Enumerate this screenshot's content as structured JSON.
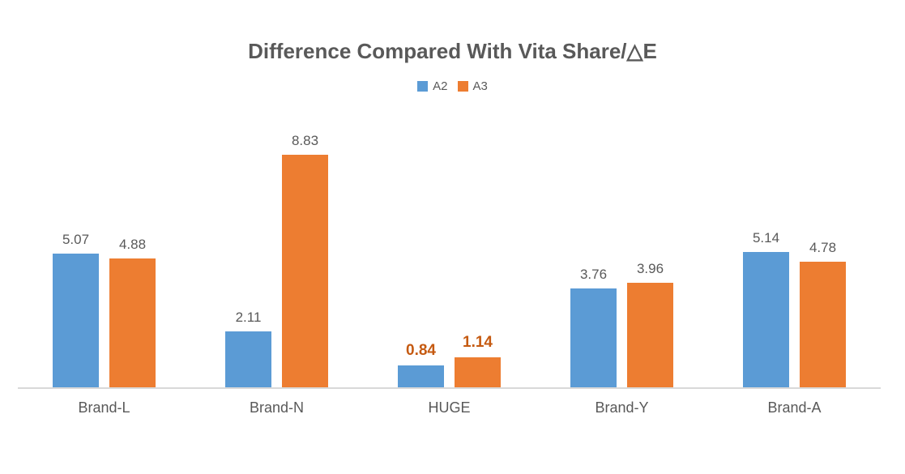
{
  "chart_data": {
    "type": "bar",
    "title": "Difference Compared With Vita Share/△E",
    "categories": [
      "Brand-L",
      "Brand-N",
      "HUGE",
      "Brand-Y",
      "Brand-A"
    ],
    "series": [
      {
        "name": "A2",
        "color": "#5B9BD5",
        "values": [
          5.07,
          2.11,
          0.84,
          3.76,
          5.14
        ]
      },
      {
        "name": "A3",
        "color": "#ED7D31",
        "values": [
          4.88,
          8.83,
          1.14,
          3.96,
          4.78
        ]
      }
    ],
    "ylim": [
      0,
      9
    ],
    "grid": false,
    "y_axis_visible": false,
    "legend_position": "top",
    "value_labels": "outside-end",
    "label_color": "#595959",
    "axis_line_color": "#D9D9D9",
    "highlight": {
      "category": "HUGE",
      "label_color": "#C55A11",
      "bold": true
    }
  }
}
